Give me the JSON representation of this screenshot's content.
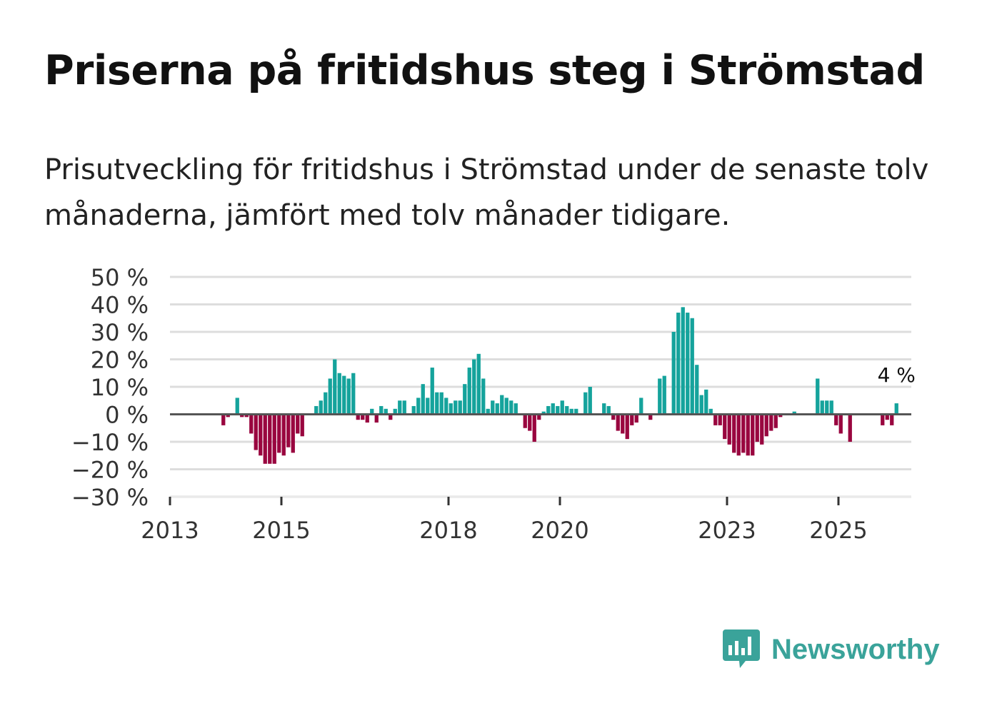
{
  "title": "Priserna på fritidshus steg i Strömstad",
  "subtitle": "Prisutveckling för fritidshus i Strömstad under de senaste tolv månaderna, jämfört med tolv månader tidigare.",
  "brand": {
    "name": "Newsworthy",
    "color": "#3aa39a"
  },
  "colors": {
    "positive": "#15a39c",
    "negative": "#99063f",
    "grid": "#dddddd",
    "zero": "#555555"
  },
  "chart_data": {
    "type": "bar",
    "title": "Priserna på fritidshus steg i Strömstad",
    "xlabel": "",
    "ylabel": "",
    "ylim": [
      -30,
      50
    ],
    "yticks": [
      50,
      40,
      30,
      20,
      10,
      0,
      -10,
      -20,
      -30
    ],
    "ytick_labels": [
      "50 %",
      "40 %",
      "30 %",
      "20 %",
      "10 %",
      "0 %",
      "−10 %",
      "−20 %",
      "−30 %"
    ],
    "xticks": [
      2013,
      2015,
      2018,
      2020,
      2023,
      2025
    ],
    "start": "2013-01",
    "frequency": "monthly",
    "annotation": {
      "label": "4 %",
      "value": 4
    },
    "values": [
      null,
      null,
      null,
      null,
      null,
      null,
      null,
      null,
      null,
      null,
      null,
      -4,
      -1,
      null,
      6,
      -1,
      -1,
      -7,
      -13,
      -15,
      -18,
      -18,
      -18,
      -14,
      -15,
      -12,
      -14,
      -7,
      -8,
      null,
      null,
      3,
      5,
      8,
      13,
      20,
      15,
      14,
      13,
      15,
      -2,
      -2,
      -3,
      2,
      -3,
      3,
      2,
      -2,
      2,
      5,
      5,
      null,
      3,
      6,
      11,
      6,
      17,
      8,
      8,
      6,
      4,
      5,
      5,
      11,
      17,
      20,
      22,
      13,
      2,
      5,
      4,
      7,
      6,
      5,
      4,
      null,
      -5,
      -6,
      -10,
      -2,
      1,
      3,
      4,
      3,
      5,
      3,
      2,
      2,
      null,
      8,
      10,
      null,
      null,
      4,
      3,
      -2,
      -6,
      -7,
      -9,
      -4,
      -3,
      6,
      null,
      -2,
      null,
      13,
      14,
      null,
      30,
      37,
      39,
      37,
      35,
      18,
      7,
      9,
      2,
      -4,
      -4,
      -9,
      -11,
      -14,
      -15,
      -14,
      -15,
      -15,
      -10,
      -11,
      -8,
      -6,
      -5,
      -1,
      null,
      null,
      1,
      null,
      null,
      null,
      null,
      13,
      5,
      5,
      5,
      -4,
      -7,
      null,
      -10,
      null,
      null,
      null,
      null,
      null,
      null,
      -4,
      -2,
      -4,
      4
    ]
  }
}
